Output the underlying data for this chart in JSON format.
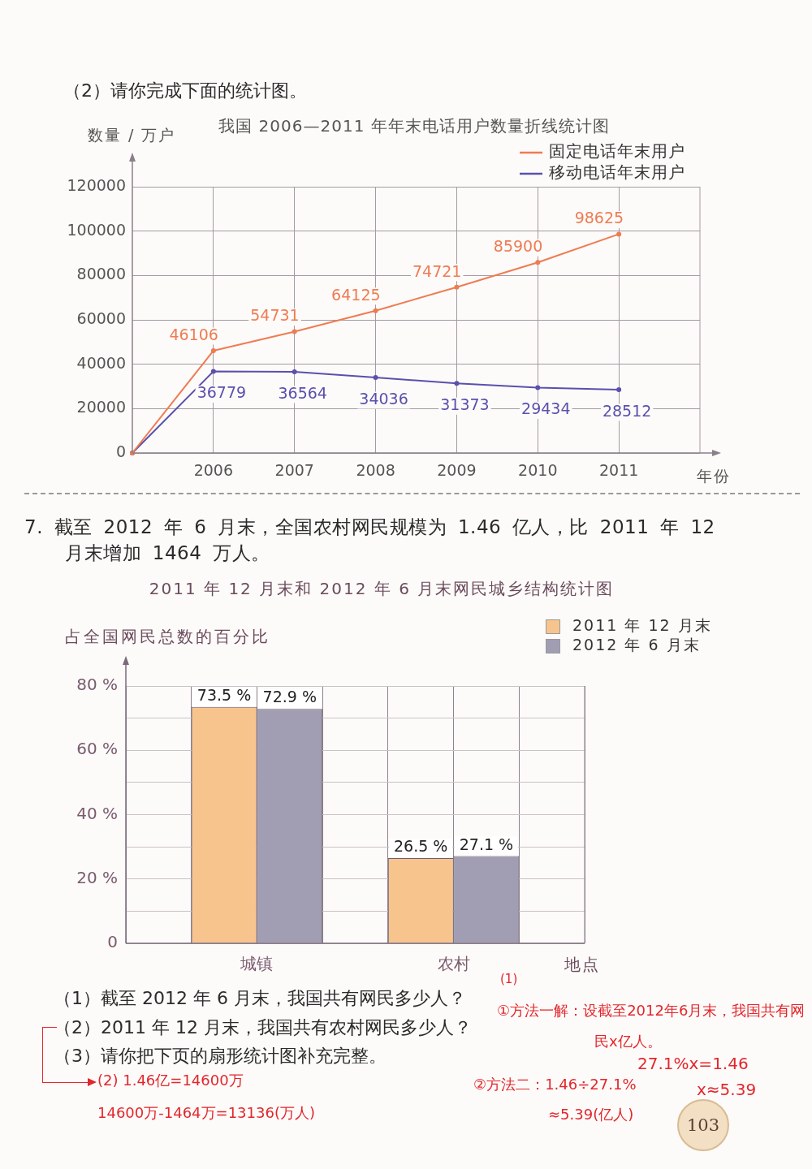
{
  "chart_data": [
    {
      "type": "line",
      "title": "我国 2006—2011 年年末电话用户数量折线统计图",
      "xlabel": "年份",
      "ylabel": "数量 / 万户",
      "annotations": [
        "（2）请你完成下面的统计图。"
      ],
      "x": [
        2005,
        2006,
        2007,
        2008,
        2009,
        2010,
        2011
      ],
      "series": [
        {
          "name": "固定电话年末用户",
          "color": "#ef7b52",
          "values": [
            0,
            46106,
            54731,
            64125,
            74721,
            85900,
            98625
          ],
          "value_labels": [
            null,
            "46106",
            "54731",
            "64125",
            "74721",
            "85900",
            "98625"
          ]
        },
        {
          "name": "移动电话年末用户",
          "color": "#5a50ad",
          "values": [
            0,
            36779,
            36564,
            34036,
            31373,
            29434,
            28512
          ],
          "value_labels": [
            null,
            "36779",
            "36564",
            "34036",
            "31373",
            "29434",
            "28512"
          ]
        }
      ],
      "xlim": [
        2005,
        2012
      ],
      "xticks": [
        2006,
        2007,
        2008,
        2009,
        2010,
        2011
      ],
      "ylim": [
        0,
        120000
      ],
      "yticks": [
        0,
        20000,
        40000,
        60000,
        80000,
        100000,
        120000
      ],
      "grid": true,
      "legend": "top right",
      "marker": "circle"
    },
    {
      "type": "bar",
      "title": "2011 年 12 月末和 2012 年 6 月末网民城乡结构统计图",
      "xlabel": "地点",
      "ylabel": "占全国网民总数的百分比",
      "annotations": [
        "7. 截至 2012 年 6 月末，全国农村网民规模为 1.46 亿人，比 2011 年 12 月末增加 1464 万人。",
        "（1）截至 2012 年 6 月末，我国共有网民多少人？",
        "（2）2011 年 12 月末，我国共有农村网民多少人？",
        "（3）请你把下页的扇形统计图补充完整。",
        "(1)",
        "①方法一解：设截至2012年6月末，我国共有网民x亿人。",
        "27.1%x=1.46",
        "x≈5.39",
        "②方法二：1.46÷27.1%",
        "≈5.39(亿人)",
        "(2) 1.46亿=14600万",
        "14600万-1464万=13136(万人)",
        "103"
      ],
      "categories": [
        "城镇",
        "农村"
      ],
      "series": [
        {
          "name": "2011 年 12 月末",
          "color": "#f7c48e",
          "values": [
            73.5,
            26.5
          ],
          "value_labels": [
            "73.5 %",
            "26.5 %"
          ]
        },
        {
          "name": "2012 年 6 月末",
          "color": "#a19db3",
          "values": [
            72.9,
            27.1
          ],
          "value_labels": [
            "72.9 %",
            "27.1 %"
          ]
        }
      ],
      "ylim": [
        0,
        80
      ],
      "yticks": [
        0,
        {
          "value": 10,
          "label": null
        },
        {
          "value": 20,
          "label": "20 %"
        },
        {
          "value": 30,
          "label": null
        },
        {
          "value": 40,
          "label": "40 %"
        },
        {
          "value": 50,
          "label": null
        },
        {
          "value": 60,
          "label": "60 %"
        },
        {
          "value": 70,
          "label": null
        },
        {
          "value": 80,
          "label": "80 %"
        }
      ],
      "grid": true,
      "legend": "top right"
    }
  ]
}
